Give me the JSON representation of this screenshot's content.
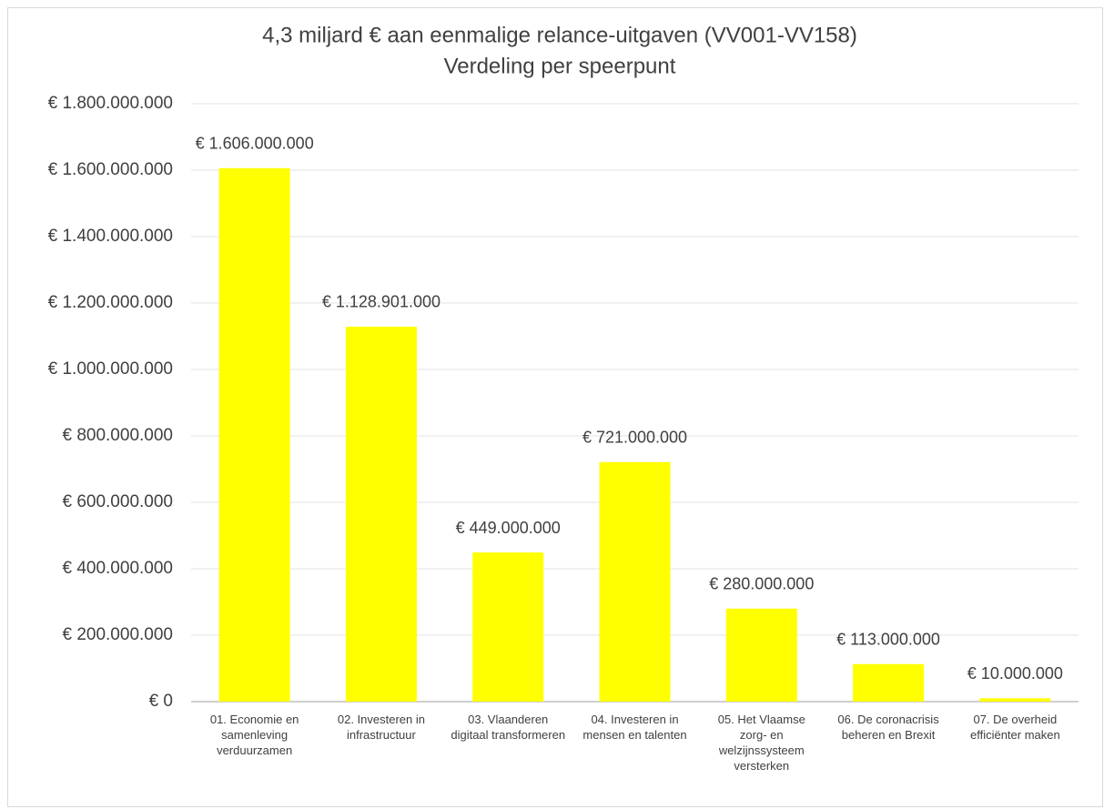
{
  "chart_data": {
    "type": "bar",
    "title": "4,3 miljard € aan eenmalige relance-uitgaven (VV001-VV158)",
    "subtitle": "Verdeling per speerpunt",
    "categories": [
      "01. Economie en samenleving verduurzamen",
      "02. Investeren in infrastructuur",
      "03. Vlaanderen digitaal transformeren",
      "04. Investeren in mensen en talenten",
      "05. Het Vlaamse zorg- en welzijnssysteem versterken",
      "06. De coronacrisis beheren en Brexit",
      "07. De overheid efficiënter maken"
    ],
    "values": [
      1606000000,
      1128901000,
      449000000,
      721000000,
      280000000,
      113000000,
      10000000
    ],
    "value_labels": [
      "€ 1.606.000.000",
      "€ 1.128.901.000",
      "€ 449.000.000",
      "€ 721.000.000",
      "€ 280.000.000",
      "€ 113.000.000",
      "€ 10.000.000"
    ],
    "color": "#ffff00",
    "ylim": [
      0,
      1800000000
    ],
    "yticks": [
      {
        "value": 0,
        "label": "€ 0"
      },
      {
        "value": 200000000,
        "label": "€ 200.000.000"
      },
      {
        "value": 400000000,
        "label": "€ 400.000.000"
      },
      {
        "value": 600000000,
        "label": "€ 600.000.000"
      },
      {
        "value": 800000000,
        "label": "€ 800.000.000"
      },
      {
        "value": 1000000000,
        "label": "€ 1.000.000.000"
      },
      {
        "value": 1200000000,
        "label": "€ 1.200.000.000"
      },
      {
        "value": 1400000000,
        "label": "€ 1.400.000.000"
      },
      {
        "value": 1600000000,
        "label": "€ 1.600.000.000"
      },
      {
        "value": 1800000000,
        "label": "€ 1.800.000.000"
      }
    ],
    "grid": true
  }
}
